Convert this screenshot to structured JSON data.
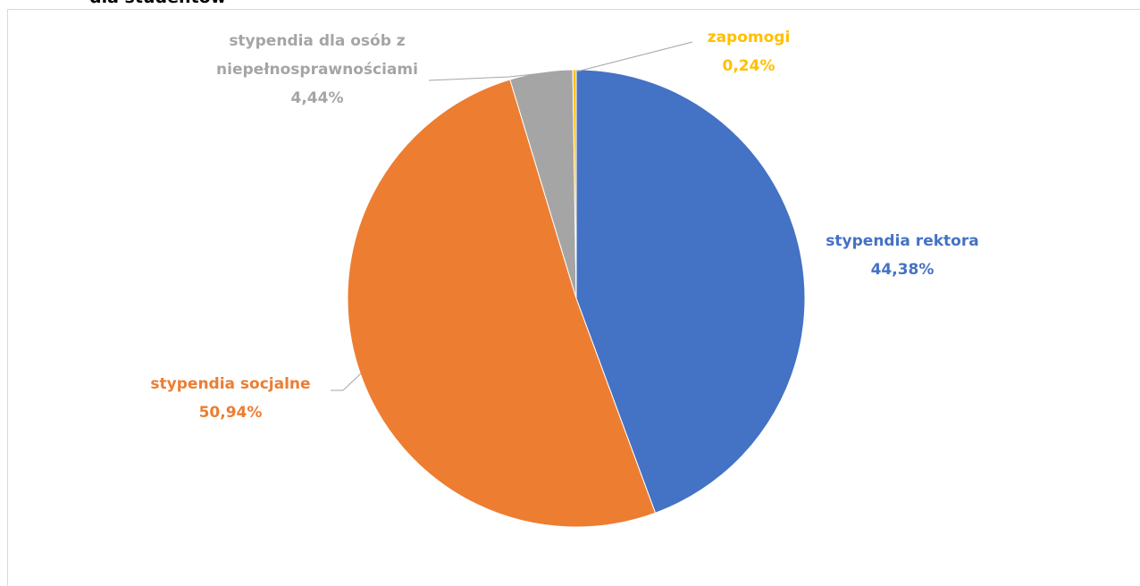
{
  "chart_data": {
    "type": "pie",
    "title": "dla studentów",
    "categories": [
      "stypendia rektora",
      "stypendia socjalne",
      "stypendia dla osób z niepełnosprawnościami",
      "zapomogi"
    ],
    "values": [
      44.38,
      50.94,
      4.44,
      0.24
    ],
    "value_labels": [
      "44,38%",
      "50,94%",
      "4,44%",
      "0,24%"
    ],
    "colors": [
      "#4472c4",
      "#ed7d31",
      "#a5a5a5",
      "#ffc000"
    ]
  }
}
